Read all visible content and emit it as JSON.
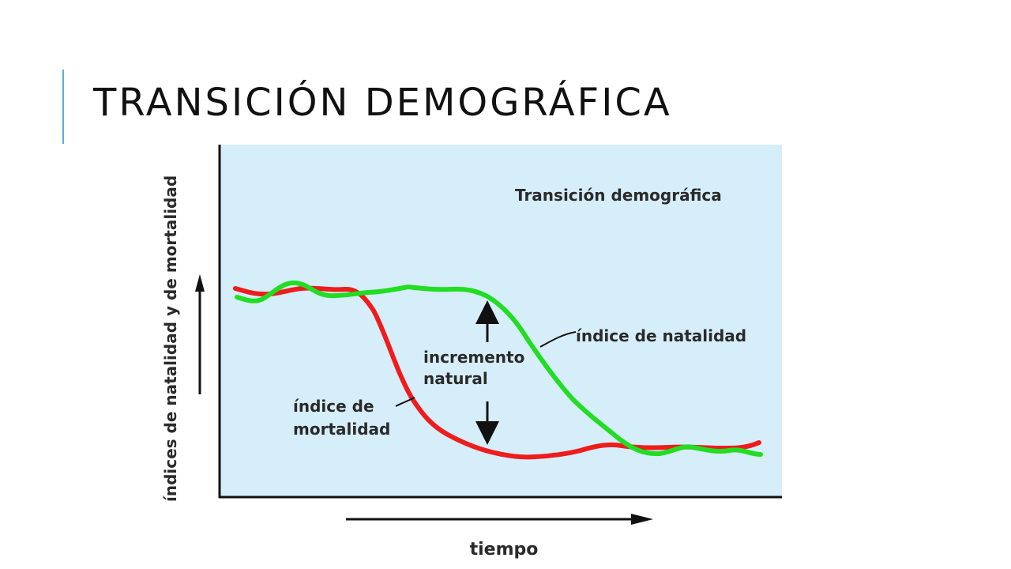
{
  "slide": {
    "title": "TRANSICIÓN DEMOGRÁFICA",
    "accent_color": "#4fb3cf"
  },
  "diagram": {
    "inner_title": "Transición demográfica",
    "y_axis_label": "índices de natalidad y de mortalidad",
    "x_axis_label": "tiempo",
    "birth_rate_label": "índice de natalidad",
    "death_rate_label_line1": "índice de",
    "death_rate_label_line2": "mortalidad",
    "gap_label_line1": "incremento",
    "gap_label_line2": "natural",
    "background_color": "#d6eefa",
    "birth_rate_color": "#22dd22",
    "death_rate_color": "#ee1c1c"
  }
}
